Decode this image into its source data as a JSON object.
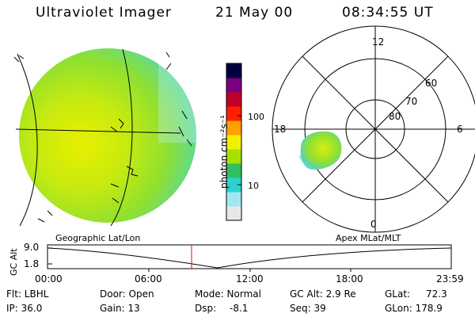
{
  "header": {
    "instrument": "Ultraviolet Imager",
    "date": "21 May 00",
    "time": "08:34:55 UT"
  },
  "colorbar": {
    "unit_label": "photon cm⁻²s⁻¹",
    "ticks": [
      "100",
      "10"
    ],
    "scale": "log",
    "colors": [
      "#e8e8e8",
      "#9fe8f0",
      "#2fd0d0",
      "#30c060",
      "#a8e000",
      "#f0f000",
      "#ffa000",
      "#ff2000",
      "#c0002a",
      "#7a0080",
      "#000040"
    ]
  },
  "polar_plot": {
    "mlt_labels": {
      "top": "12",
      "left": "18",
      "right": "6",
      "bottom": "0"
    },
    "lat_labels": [
      "60",
      "70",
      "80"
    ]
  },
  "timeline": {
    "left_label": "Geographic Lat/Lon",
    "right_label": "Apex MLat/MLT",
    "axis_title": "GC Alt",
    "y_ticks": [
      "9.0",
      "1.8"
    ],
    "x_ticks": [
      "00:00",
      "06:00",
      "12:00",
      "18:00",
      "23:59"
    ],
    "marker_color": "#ff0000"
  },
  "footer": {
    "filter": "Flt: LBHL",
    "ip": "IP: 36.0",
    "door": "Door: Open",
    "gain": "Gain: 13",
    "mode": "Mode: Normal",
    "dsp": "Dsp:",
    "dsp_value": "-8.1",
    "gc_alt": "GC Alt: 2.9 Re",
    "seq": "Seq: 39",
    "glat": "GLat:",
    "glat_value": "72.3",
    "glon": "GLon: 178.9"
  }
}
